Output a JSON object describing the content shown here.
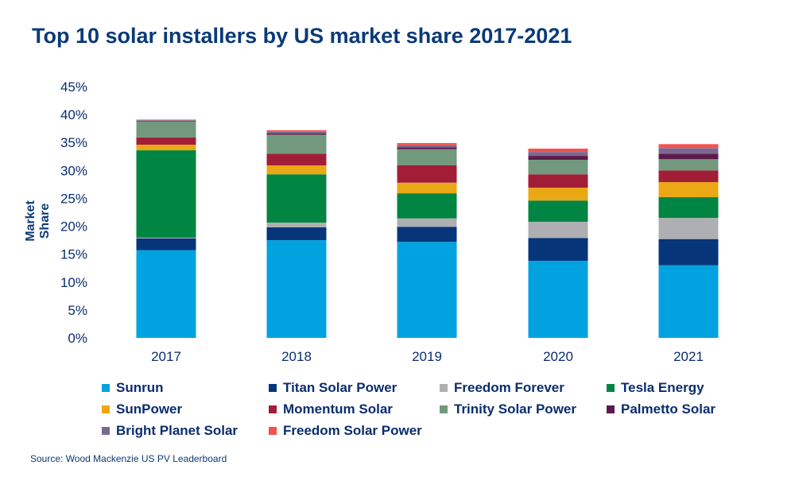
{
  "chart_data": {
    "type": "bar",
    "stacked": true,
    "title": "Top 10 solar installers by US market share 2017-2021",
    "xlabel": "",
    "ylabel": "Market Share",
    "ylim": [
      0,
      45
    ],
    "yticks": [
      "0%",
      "5%",
      "10%",
      "15%",
      "20%",
      "25%",
      "30%",
      "35%",
      "40%",
      "45%"
    ],
    "grid": false,
    "legend_position": "bottom",
    "categories": [
      "2017",
      "2018",
      "2019",
      "2020",
      "2021"
    ],
    "series": [
      {
        "name": "Sunrun",
        "color": "#00A3E0",
        "values": [
          15.7,
          17.5,
          17.2,
          13.8,
          13.0
        ]
      },
      {
        "name": "Titan Solar Power",
        "color": "#06357A",
        "values": [
          2.1,
          2.3,
          2.7,
          4.1,
          4.7
        ]
      },
      {
        "name": "Freedom Forever",
        "color": "#ADAFB2",
        "values": [
          0.15,
          0.85,
          1.5,
          2.9,
          3.8
        ]
      },
      {
        "name": "Tesla Energy",
        "color": "#008542",
        "values": [
          15.65,
          8.65,
          4.5,
          3.8,
          3.7
        ]
      },
      {
        "name": "SunPower",
        "color": "#EAA814",
        "values": [
          1.0,
          1.6,
          1.9,
          2.3,
          2.7
        ]
      },
      {
        "name": "Momentum Solar",
        "color": "#A21E37",
        "values": [
          1.3,
          2.1,
          3.1,
          2.4,
          2.1
        ]
      },
      {
        "name": "Trinity Solar Power",
        "color": "#72997E",
        "values": [
          2.9,
          3.4,
          2.9,
          2.6,
          2.0
        ]
      },
      {
        "name": "Palmetto Solar",
        "color": "#5C1A4A",
        "values": [
          0.1,
          0.2,
          0.3,
          0.7,
          1.0
        ]
      },
      {
        "name": "Bright Planet Solar",
        "color": "#7A6892",
        "values": [
          0.1,
          0.3,
          0.4,
          0.7,
          1.0
        ]
      },
      {
        "name": "Freedom Solar Power",
        "color": "#F4524F",
        "values": [
          0.1,
          0.3,
          0.4,
          0.6,
          0.7
        ]
      }
    ],
    "source": "Source: Wood Mackenzie US PV Leaderboard"
  }
}
